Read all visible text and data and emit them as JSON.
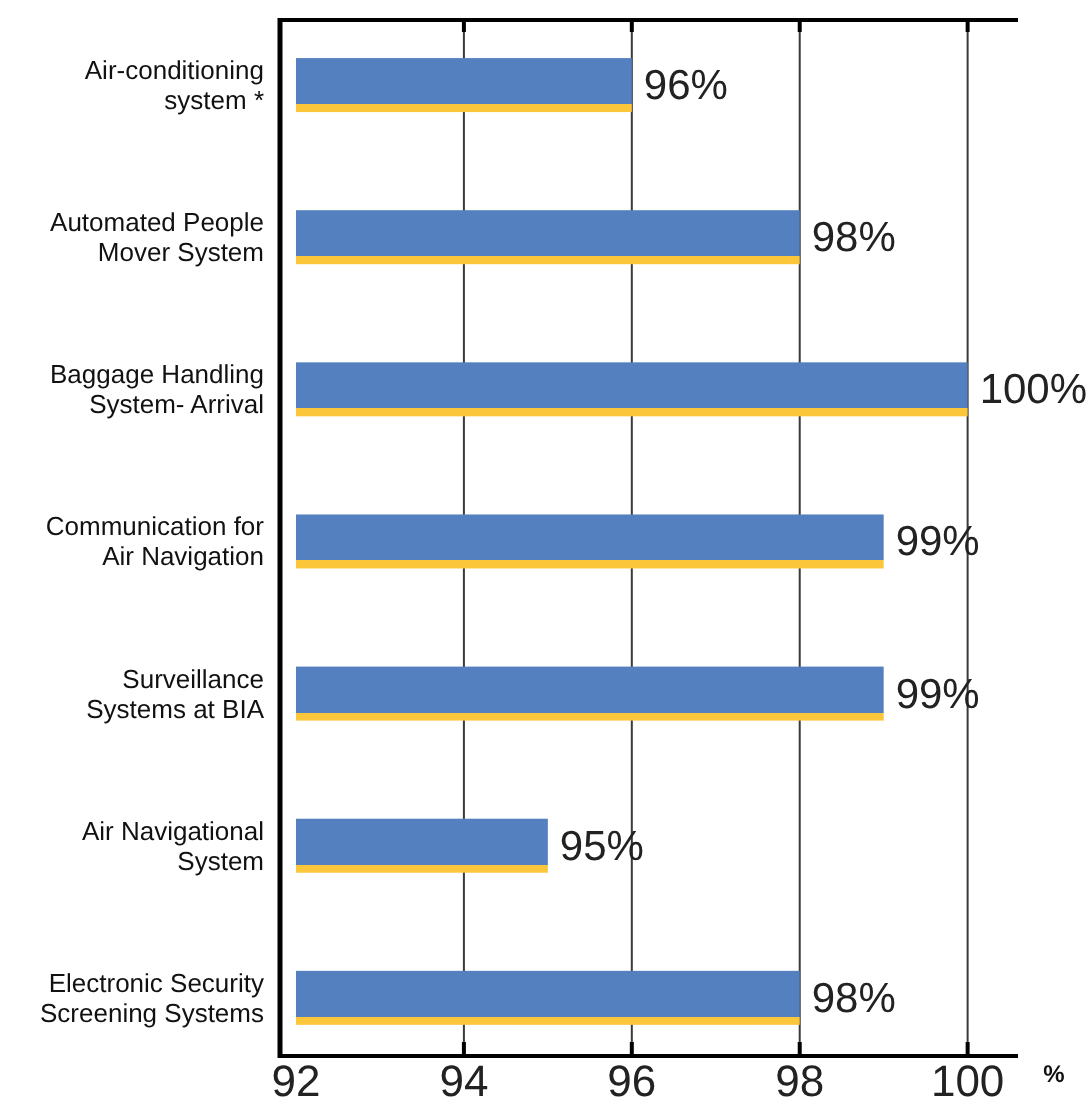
{
  "chart_data": {
    "type": "bar",
    "orientation": "horizontal",
    "categories": [
      "Air-conditioning system *",
      "Automated People Mover System",
      "Baggage Handling System- Arrival",
      "Communication for Air Navigation",
      "Surveillance Systems at BIA",
      "Air Navigational System",
      "Electronic Security Screening Systems"
    ],
    "values": [
      96,
      98,
      100,
      99,
      99,
      95,
      98
    ],
    "color": "#5480c0",
    "value_labels": [
      "96%",
      "98%",
      "100%",
      "99%",
      "99%",
      "95%",
      "98%"
    ],
    "xlim": [
      92,
      100.6
    ],
    "xticks": [
      92,
      94,
      96,
      98,
      100
    ],
    "xlabel": "%",
    "grid": "x"
  }
}
